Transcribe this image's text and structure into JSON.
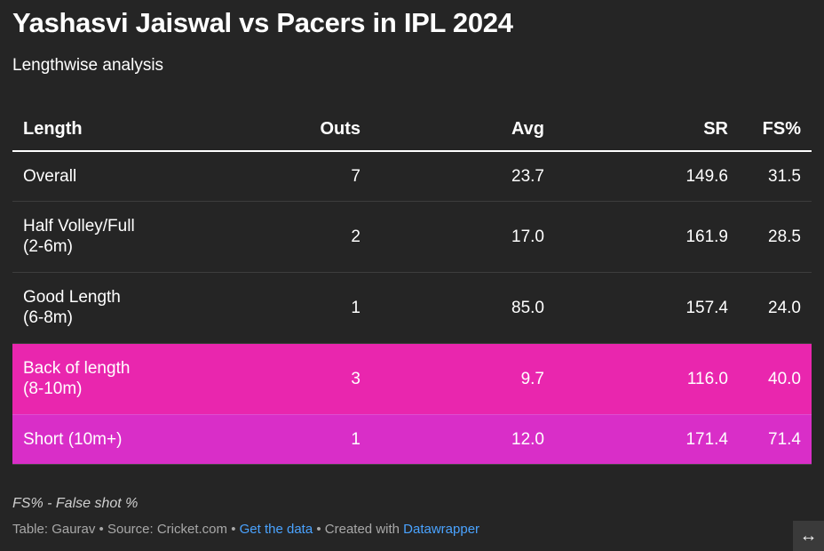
{
  "header": {
    "title": "Yashasvi Jaiswal vs Pacers in IPL 2024",
    "subtitle": "Lengthwise analysis"
  },
  "chart_data": {
    "type": "table",
    "columns": [
      "Length",
      "Outs",
      "Avg",
      "SR",
      "FS%"
    ],
    "rows": [
      {
        "cells": [
          "Overall",
          "7",
          "23.7",
          "149.6",
          "31.5"
        ],
        "highlight": null
      },
      {
        "cells": [
          "Half Volley/Full\n(2-6m)",
          "2",
          "17.0",
          "161.9",
          "28.5"
        ],
        "highlight": null
      },
      {
        "cells": [
          "Good Length\n(6-8m)",
          "1",
          "85.0",
          "157.4",
          "24.0"
        ],
        "highlight": null
      },
      {
        "cells": [
          "Back of length\n(8-10m)",
          "3",
          "9.7",
          "116.0",
          "40.0"
        ],
        "highlight": "#e926ae"
      },
      {
        "cells": [
          "Short (10m+)",
          "1",
          "12.0",
          "171.4",
          "71.4"
        ],
        "highlight": "#d92ec8"
      }
    ]
  },
  "notes": "FS% - False shot %",
  "footer": {
    "byline": "Table: Gaurav",
    "sep1": " • ",
    "source": "Source: Cricket.com",
    "sep2": " • ",
    "get_data": "Get the data",
    "sep3": " • ",
    "created": "Created with ",
    "datawrapper": "Datawrapper"
  },
  "colors": {
    "background": "#252525",
    "link": "#4aa3ff"
  },
  "expand_icon": "↔"
}
